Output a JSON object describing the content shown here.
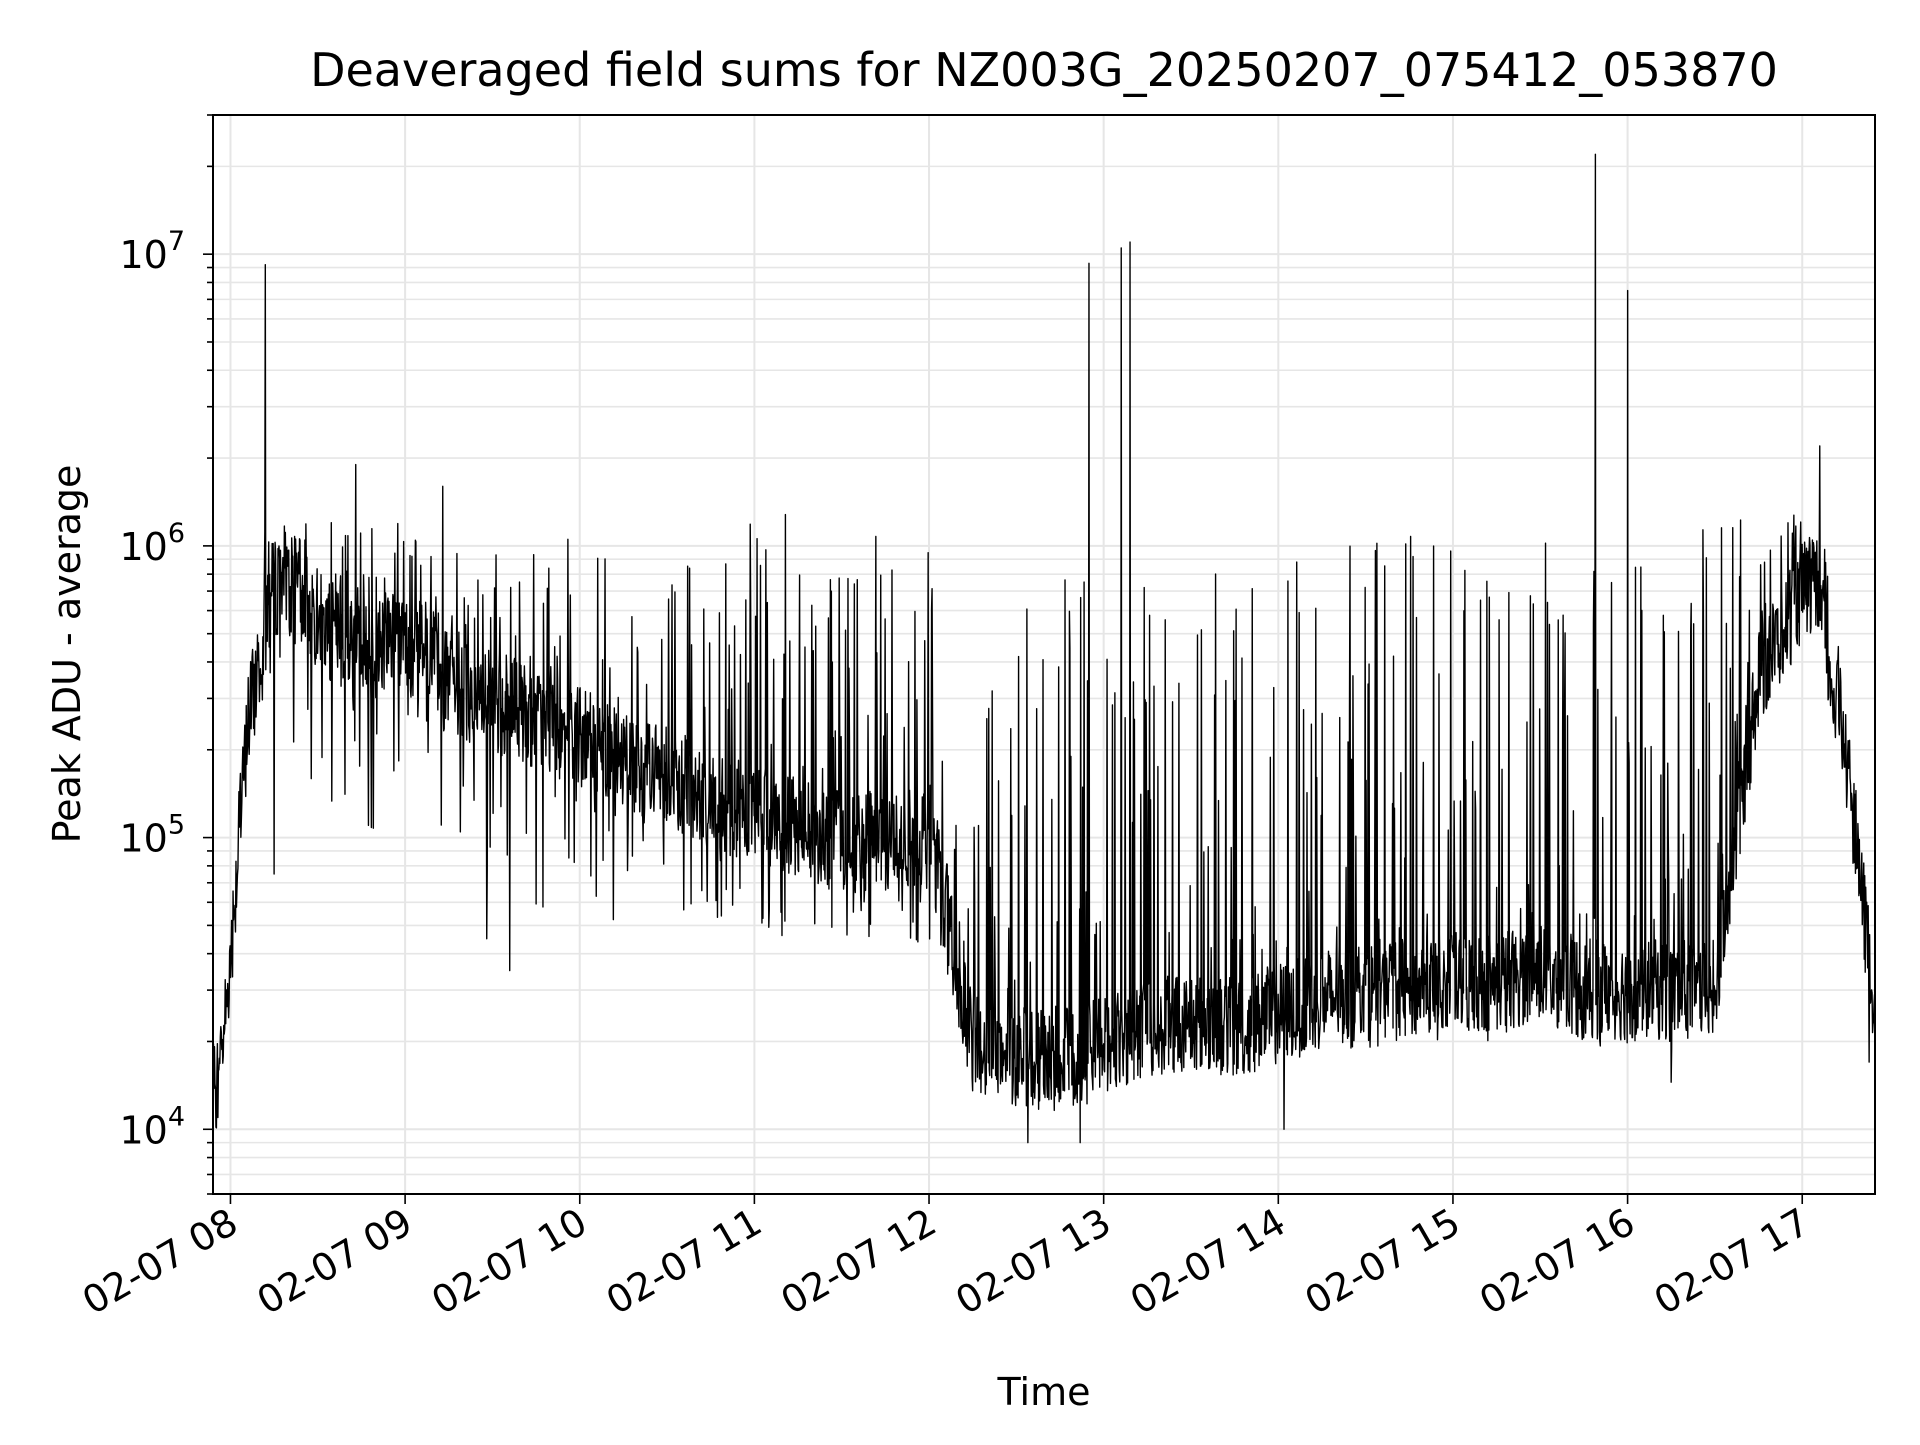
{
  "chart_data": {
    "type": "line",
    "title": "Deaveraged field sums for NZ003G_20250207_075412_053870",
    "xlabel": "Time",
    "ylabel": "Peak ADU - average",
    "yscale": "log",
    "xlim": [
      "2025-02-07 07:54",
      "2025-02-07 17:25"
    ],
    "ylim": [
      6000,
      30000000
    ],
    "grid": true,
    "line_color": "#000000",
    "x_ticks": [
      "02-07 08",
      "02-07 09",
      "02-07 10",
      "02-07 11",
      "02-07 12",
      "02-07 13",
      "02-07 14",
      "02-07 15",
      "02-07 16",
      "02-07 17"
    ],
    "y_ticks": [
      {
        "value": 10000,
        "base": "10",
        "exp": "4"
      },
      {
        "value": 100000,
        "base": "10",
        "exp": "5"
      },
      {
        "value": 1000000,
        "base": "10",
        "exp": "6"
      },
      {
        "value": 10000000,
        "base": "10",
        "exp": "7"
      }
    ],
    "series": [
      {
        "x": [
          "07:54",
          "07:57",
          "08:00",
          "08:03",
          "08:06",
          "08:09",
          "08:12",
          "08:15",
          "08:18",
          "08:24",
          "08:30",
          "08:36",
          "08:42",
          "08:48",
          "08:54",
          "09:00",
          "09:06",
          "09:12",
          "09:24",
          "09:36",
          "09:48",
          "10:00",
          "10:12",
          "10:24",
          "10:36",
          "10:48",
          "11:00",
          "11:12",
          "11:24",
          "11:36",
          "11:48",
          "12:00",
          "12:06",
          "12:10",
          "12:15",
          "12:30",
          "12:45",
          "13:00",
          "13:15",
          "13:30",
          "13:45",
          "14:00",
          "14:15",
          "14:30",
          "14:45",
          "15:00",
          "15:15",
          "15:30",
          "15:45",
          "16:00",
          "16:15",
          "16:30",
          "16:45",
          "17:00",
          "17:05",
          "17:10",
          "17:15",
          "17:20",
          "17:25"
        ],
        "base": [
          13000,
          18000,
          40000,
          100000,
          250000,
          350000,
          600000,
          700000,
          800000,
          700000,
          550000,
          500000,
          450000,
          420000,
          500000,
          450000,
          450000,
          350000,
          300000,
          280000,
          250000,
          220000,
          200000,
          170000,
          150000,
          130000,
          120000,
          110000,
          100000,
          95000,
          100000,
          100000,
          60000,
          30000,
          20000,
          18000,
          17000,
          20000,
          22000,
          24000,
          22000,
          25000,
          28000,
          30000,
          30000,
          32000,
          32000,
          35000,
          30000,
          30000,
          30000,
          30000,
          350000,
          700000,
          700000,
          350000,
          200000,
          70000,
          25000
        ],
        "upper": [
          13000,
          20000,
          45000,
          150000,
          400000,
          500000,
          1200000,
          1300000,
          1300000,
          1300000,
          1400000,
          1700000,
          1400000,
          1600000,
          1400000,
          1200000,
          1000000,
          900000,
          1000000,
          1000000,
          1000000,
          1100000,
          1000000,
          1200000,
          1100000,
          1200000,
          1300000,
          1300000,
          1100000,
          1000000,
          1200000,
          1000000,
          500000,
          300000,
          200000,
          900000,
          900000,
          900000,
          900000,
          900000,
          900000,
          900000,
          1000000,
          1050000,
          1100000,
          1100000,
          1100000,
          1100000,
          1100000,
          1100000,
          1100000,
          1200000,
          1300000,
          1300000,
          1300000,
          800000,
          300000,
          100000,
          30000
        ],
        "lower": [
          13000,
          16000,
          35000,
          80000,
          200000,
          250000,
          300000,
          300000,
          250000,
          150000,
          120000,
          100000,
          100000,
          100000,
          100000,
          120000,
          100000,
          90000,
          70000,
          60000,
          55000,
          50000,
          50000,
          45000,
          50000,
          45000,
          45000,
          40000,
          40000,
          40000,
          40000,
          40000,
          30000,
          20000,
          14000,
          11000,
          11000,
          13000,
          15000,
          16000,
          16000,
          17000,
          18000,
          19000,
          20000,
          20000,
          20000,
          20000,
          18000,
          17000,
          18000,
          20000,
          300000,
          500000,
          500000,
          250000,
          180000,
          60000,
          20000
        ],
        "spikes": [
          {
            "x": "08:12",
            "y": 9200000
          },
          {
            "x": "08:43",
            "y": 1900000
          },
          {
            "x": "09:13",
            "y": 1600000
          },
          {
            "x": "12:55",
            "y": 9300000
          },
          {
            "x": "13:06",
            "y": 10500000
          },
          {
            "x": "13:09",
            "y": 11000000
          },
          {
            "x": "15:49",
            "y": 22000000
          },
          {
            "x": "16:00",
            "y": 7500000
          },
          {
            "x": "17:06",
            "y": 2200000
          }
        ],
        "dips": [
          {
            "x": "08:15",
            "y": 75000
          },
          {
            "x": "09:28",
            "y": 45000
          },
          {
            "x": "09:36",
            "y": 35000
          },
          {
            "x": "12:34",
            "y": 9000
          },
          {
            "x": "12:52",
            "y": 9000
          },
          {
            "x": "14:02",
            "y": 10000
          },
          {
            "x": "16:15",
            "y": 14500
          },
          {
            "x": "17:23",
            "y": 17000
          }
        ]
      }
    ]
  }
}
